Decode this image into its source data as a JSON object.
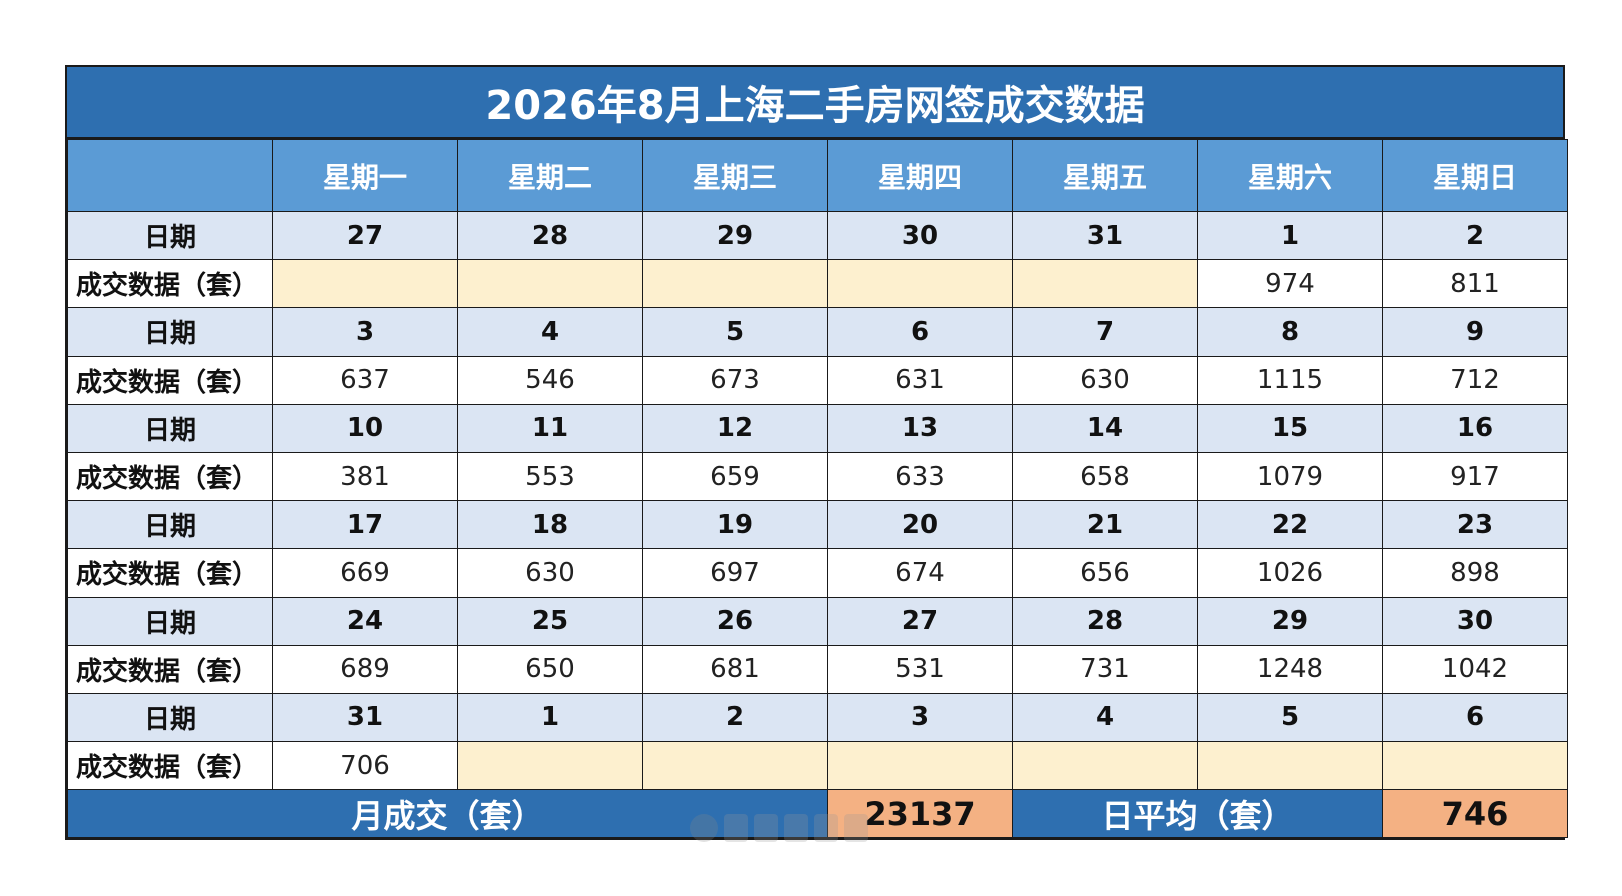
{
  "title": "2026年8月上海二手房网签成交数据",
  "weekdays": [
    "星期一",
    "星期二",
    "星期三",
    "星期四",
    "星期五",
    "星期六",
    "星期日"
  ],
  "row_labels": {
    "date": "日期",
    "deals": "成交数据（套）"
  },
  "weeks": [
    {
      "dates": [
        "27",
        "28",
        "29",
        "30",
        "31",
        "1",
        "2"
      ],
      "deals": [
        "",
        "",
        "",
        "",
        "",
        "974",
        "811"
      ]
    },
    {
      "dates": [
        "3",
        "4",
        "5",
        "6",
        "7",
        "8",
        "9"
      ],
      "deals": [
        "637",
        "546",
        "673",
        "631",
        "630",
        "1115",
        "712"
      ]
    },
    {
      "dates": [
        "10",
        "11",
        "12",
        "13",
        "14",
        "15",
        "16"
      ],
      "deals": [
        "381",
        "553",
        "659",
        "633",
        "658",
        "1079",
        "917"
      ]
    },
    {
      "dates": [
        "17",
        "18",
        "19",
        "20",
        "21",
        "22",
        "23"
      ],
      "deals": [
        "669",
        "630",
        "697",
        "674",
        "656",
        "1026",
        "898"
      ]
    },
    {
      "dates": [
        "24",
        "25",
        "26",
        "27",
        "28",
        "29",
        "30"
      ],
      "deals": [
        "689",
        "650",
        "681",
        "531",
        "731",
        "1248",
        "1042"
      ]
    },
    {
      "dates": [
        "31",
        "1",
        "2",
        "3",
        "4",
        "5",
        "6"
      ],
      "deals": [
        "706",
        "",
        "",
        "",
        "",
        "",
        ""
      ]
    }
  ],
  "summary": {
    "monthly_label": "月成交（套）",
    "monthly_value": "23137",
    "daily_avg_label": "日平均（套）",
    "daily_avg_value": "746"
  },
  "colors": {
    "title_bg": "#2e6fb0",
    "header_bg": "#5b9bd5",
    "date_row_bg": "#dbe5f3",
    "empty_cell_bg": "#fdf0cf",
    "summary_value_bg": "#f4b183"
  }
}
